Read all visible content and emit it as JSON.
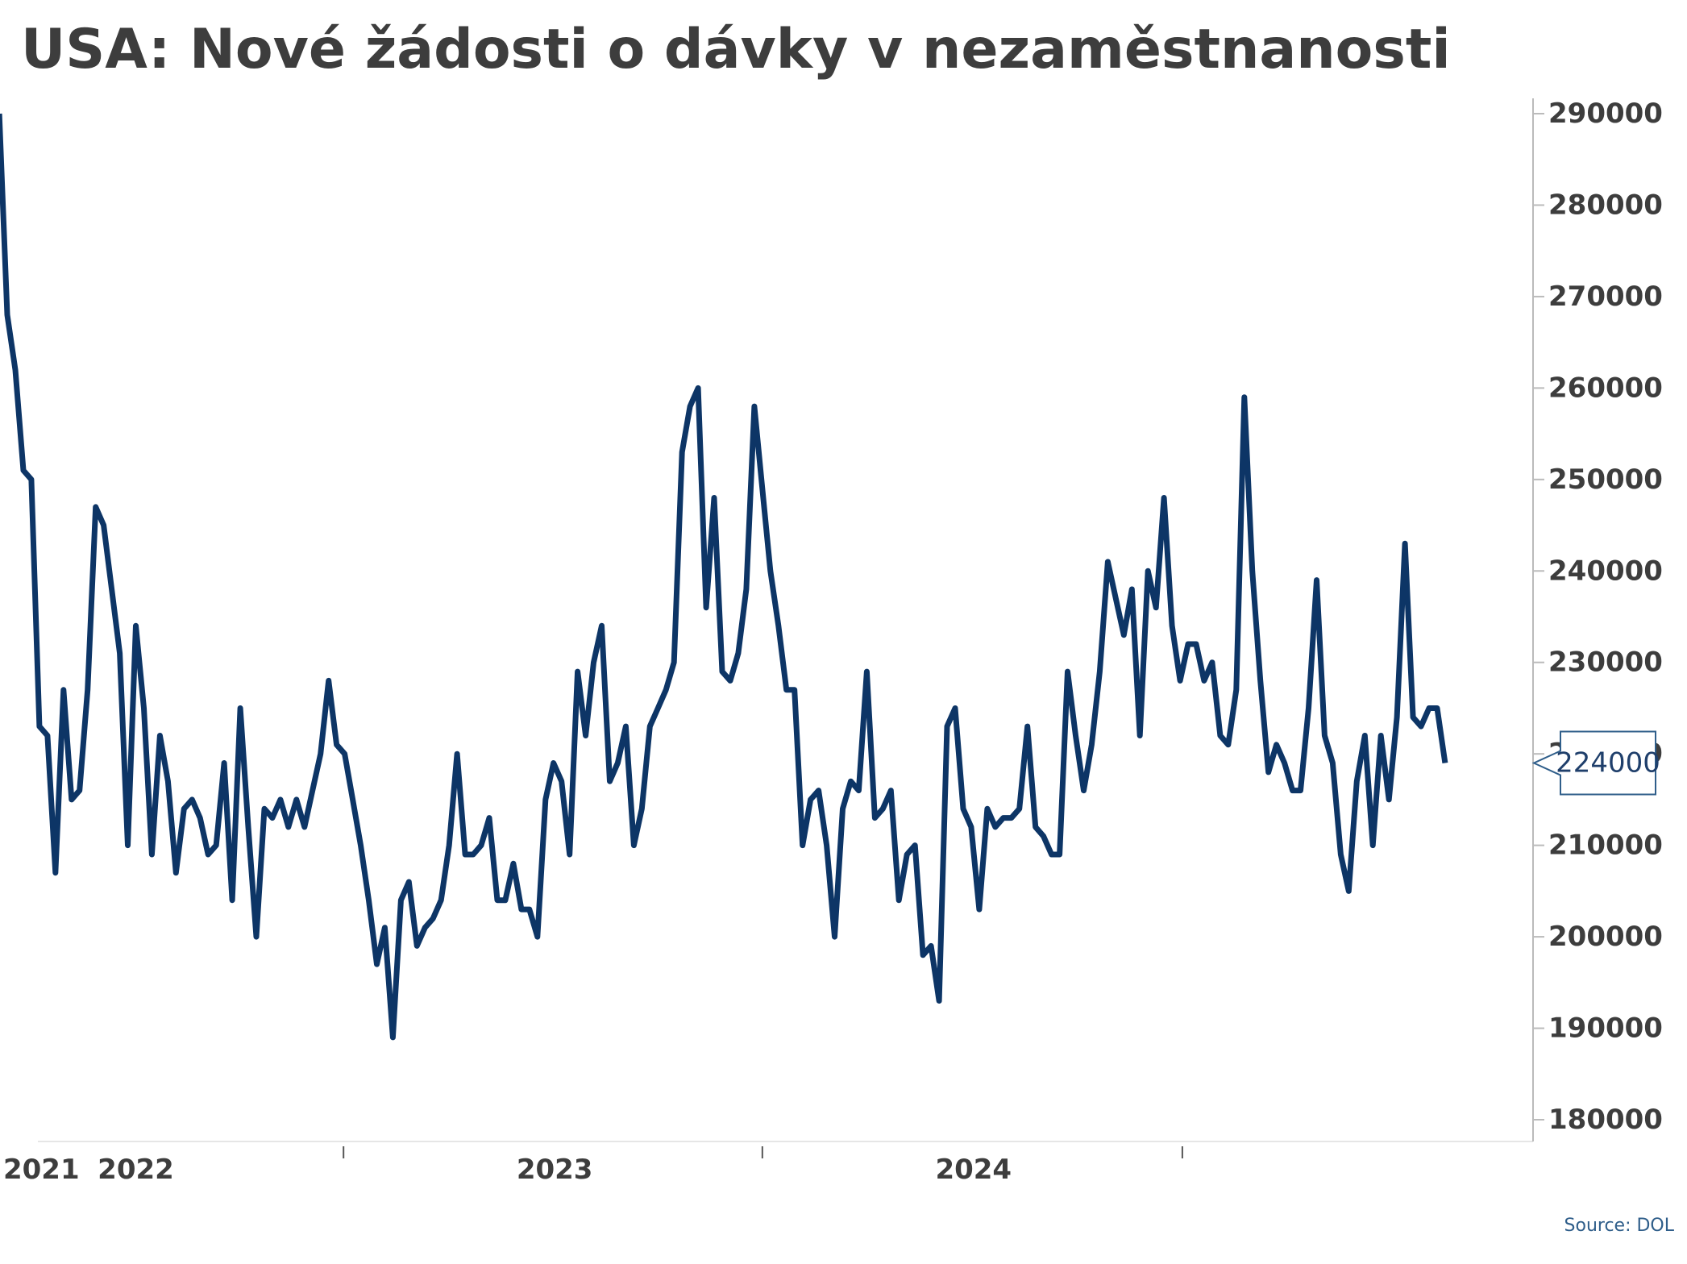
{
  "title": "USA: Nové žádosti o dávky v nezaměstnanosti",
  "source": "Source: DOL",
  "colors": {
    "line": "#0d3566",
    "text": "#3d3d3d",
    "axis": "#bbbbbb",
    "callout_border": "#2f5e8a"
  },
  "chart_data": {
    "type": "line",
    "title": "USA: Nové žádosti o dávky v nezaměstnanosti",
    "xlabel": "",
    "ylabel": "",
    "y_axis_position": "right",
    "ylim": [
      177000,
      291000
    ],
    "yticks": [
      290000,
      280000,
      270000,
      260000,
      250000,
      240000,
      230000,
      220000,
      210000,
      200000,
      190000,
      180000
    ],
    "xticks": [
      "2021",
      "2022",
      "2023",
      "2024"
    ],
    "grid": false,
    "last_value_label": "224000",
    "series": [
      {
        "frequency": "weekly",
        "start": "2021-09-04",
        "end": "2024-12-14",
        "values": [
          290000,
          268000,
          262000,
          251000,
          250000,
          223000,
          222000,
          207000,
          227000,
          215000,
          216000,
          227000,
          247000,
          245000,
          238000,
          231000,
          210000,
          234000,
          225000,
          209000,
          222000,
          217000,
          207000,
          214000,
          215000,
          213000,
          209000,
          210000,
          219000,
          204000,
          225000,
          212000,
          200000,
          214000,
          213000,
          215000,
          212000,
          215000,
          212000,
          216000,
          220000,
          228000,
          221000,
          220000,
          215000,
          210000,
          204000,
          197000,
          201000,
          189000,
          204000,
          206000,
          199000,
          201000,
          202000,
          204000,
          210000,
          220000,
          209000,
          209000,
          210000,
          213000,
          204000,
          204000,
          208000,
          203000,
          203000,
          200000,
          215000,
          219000,
          217000,
          209000,
          229000,
          222000,
          230000,
          234000,
          217000,
          219000,
          223000,
          210000,
          214000,
          223000,
          225000,
          227000,
          230000,
          253000,
          258000,
          260000,
          236000,
          248000,
          229000,
          228000,
          231000,
          238000,
          258000,
          249000,
          240000,
          234000,
          227000,
          227000,
          210000,
          215000,
          216000,
          210000,
          200000,
          214000,
          217000,
          216000,
          229000,
          213000,
          214000,
          216000,
          204000,
          209000,
          210000,
          198000,
          199000,
          193000,
          223000,
          225000,
          214000,
          212000,
          203000,
          214000,
          212000,
          213000,
          213000,
          214000,
          223000,
          212000,
          211000,
          209000,
          209000,
          229000,
          222000,
          216000,
          221000,
          229000,
          241000,
          237000,
          233000,
          238000,
          222000,
          240000,
          236000,
          248000,
          234000,
          228000,
          232000,
          232000,
          228000,
          230000,
          222000,
          221000,
          227000,
          259000,
          240000,
          228000,
          218000,
          221000,
          219000,
          216000,
          216000,
          225000,
          239000,
          222000,
          219000,
          209000,
          205000,
          217000,
          222000,
          210000,
          222000,
          215000,
          224000,
          243000,
          224000,
          223000,
          225000,
          225000,
          219000
        ]
      }
    ]
  }
}
